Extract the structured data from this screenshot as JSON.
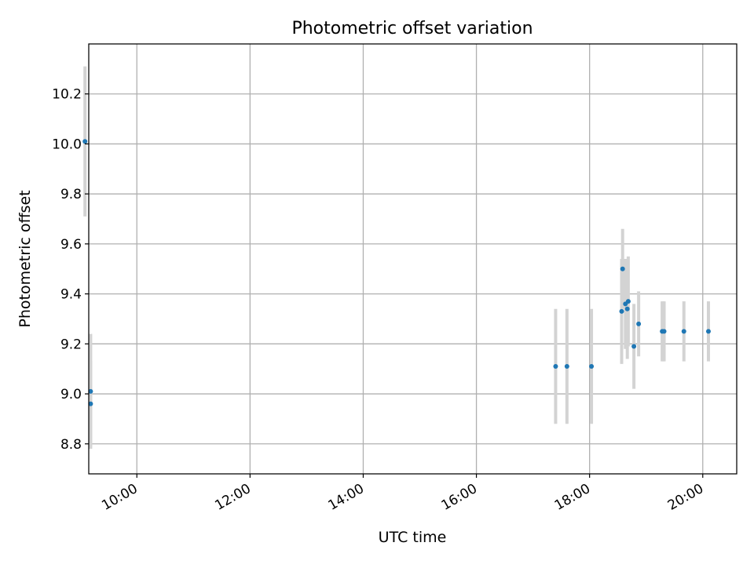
{
  "chart_data": {
    "type": "scatter",
    "title": "Photometric offset variation",
    "xlabel": "UTC time",
    "ylabel": "Photometric offset",
    "x_axis_kind": "time",
    "x_ticks": [
      "10:00",
      "12:00",
      "14:00",
      "16:00",
      "18:00",
      "20:00"
    ],
    "x_tick_labels": [
      "10:00",
      "12:00",
      "14:00",
      "16:00",
      "18:00",
      "20:00"
    ],
    "x_tick_rotation_deg": 30,
    "xlim": [
      "09:09",
      "20:36"
    ],
    "y_ticks": [
      8.8,
      9.0,
      9.2,
      9.4,
      9.6,
      9.8,
      10.0,
      10.2
    ],
    "y_tick_labels": [
      "8.8",
      "9.0",
      "9.2",
      "9.4",
      "9.6",
      "9.8",
      "10.0",
      "10.2"
    ],
    "ylim": [
      8.68,
      10.4
    ],
    "grid": true,
    "legend": "none",
    "colors": {
      "point": "#1f77b4",
      "errorbar": "#d3d3d3",
      "grid": "#b0b0b0"
    },
    "series": [
      {
        "points": [
          {
            "x": "09:05",
            "y": 10.01,
            "err": 0.3
          },
          {
            "x": "09:11",
            "y": 9.01,
            "err": 0.23
          },
          {
            "x": "09:11",
            "y": 8.96,
            "err": 0.17
          },
          {
            "x": "17:24",
            "y": 9.11,
            "err": 0.23
          },
          {
            "x": "17:36",
            "y": 9.11,
            "err": 0.23
          },
          {
            "x": "18:02",
            "y": 9.11,
            "err": 0.23
          },
          {
            "x": "18:34",
            "y": 9.33,
            "err": 0.21
          },
          {
            "x": "18:35",
            "y": 9.5,
            "err": 0.16
          },
          {
            "x": "18:38",
            "y": 9.36,
            "err": 0.18
          },
          {
            "x": "18:40",
            "y": 9.34,
            "err": 0.2
          },
          {
            "x": "18:41",
            "y": 9.37,
            "err": 0.18
          },
          {
            "x": "18:47",
            "y": 9.19,
            "err": 0.17
          },
          {
            "x": "18:52",
            "y": 9.28,
            "err": 0.13
          },
          {
            "x": "19:17",
            "y": 9.25,
            "err": 0.12
          },
          {
            "x": "19:19",
            "y": 9.25,
            "err": 0.12
          },
          {
            "x": "19:40",
            "y": 9.25,
            "err": 0.12
          },
          {
            "x": "20:06",
            "y": 9.25,
            "err": 0.12
          }
        ]
      }
    ]
  }
}
